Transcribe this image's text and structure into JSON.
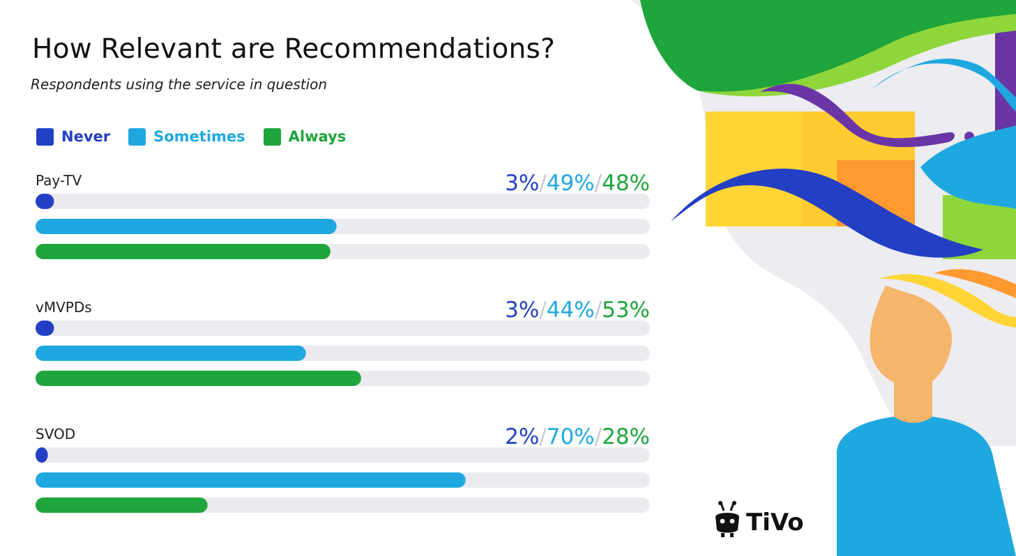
{
  "colors": {
    "never": "#2340c4",
    "sometimes": "#1fa8e0",
    "always": "#1ea53b",
    "track": "#ebebef",
    "separator": "#c8cad6"
  },
  "icon": "tivo-robot-logo-icon",
  "logo_text": "TiVo",
  "chart_data": {
    "type": "bar",
    "orientation": "horizontal",
    "title": "How Relevant are Recommendations?",
    "subtitle": "Respondents using the service in question",
    "legend_position": "top-left",
    "xlim": [
      0,
      100
    ],
    "unit": "%",
    "series": [
      {
        "name": "Never",
        "values": [
          3,
          3,
          2
        ]
      },
      {
        "name": "Sometimes",
        "values": [
          49,
          44,
          70
        ]
      },
      {
        "name": "Always",
        "values": [
          48,
          53,
          28
        ]
      }
    ],
    "categories": [
      "Pay-TV",
      "vMVPDs",
      "SVOD"
    ]
  }
}
